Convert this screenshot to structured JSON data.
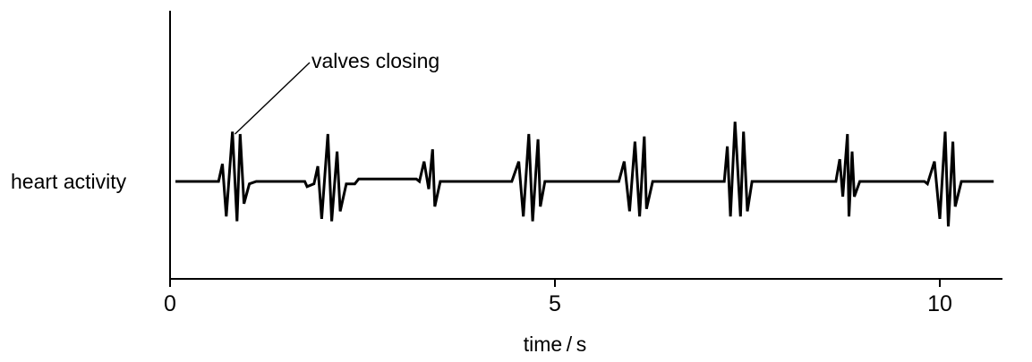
{
  "chart_data": {
    "type": "line",
    "title": "",
    "xlabel": "time / s",
    "ylabel": "heart activity",
    "xlim": [
      0,
      11.0
    ],
    "ylim": [
      -1.05,
      1.55
    ],
    "x_ticks": [
      {
        "value": 0,
        "label": "0"
      },
      {
        "value": 5,
        "label": "5"
      },
      {
        "value": 10,
        "label": "10"
      }
    ],
    "grid": false,
    "annotations": [
      {
        "text": "valves closing",
        "x": 0.82,
        "y": 1.0
      }
    ],
    "series": [
      {
        "color": "#000000",
        "points": [
          [
            0.07,
            0.0
          ],
          [
            0.63,
            0.0
          ],
          [
            0.68,
            0.37
          ],
          [
            0.73,
            -0.74
          ],
          [
            0.81,
            1.05
          ],
          [
            0.87,
            -0.84
          ],
          [
            0.91,
            1.0
          ],
          [
            0.96,
            -0.47
          ],
          [
            1.03,
            -0.05
          ],
          [
            1.12,
            0.0
          ],
          [
            1.75,
            0.0
          ],
          [
            1.78,
            -0.11
          ],
          [
            1.87,
            -0.05
          ],
          [
            1.92,
            0.32
          ],
          [
            1.97,
            -0.79
          ],
          [
            2.05,
            1.0
          ],
          [
            2.1,
            -0.84
          ],
          [
            2.17,
            0.63
          ],
          [
            2.21,
            -0.63
          ],
          [
            2.29,
            -0.05
          ],
          [
            2.4,
            -0.05
          ],
          [
            2.45,
            0.05
          ],
          [
            3.2,
            0.05
          ],
          [
            3.24,
            0.0
          ],
          [
            3.3,
            0.42
          ],
          [
            3.36,
            -0.16
          ],
          [
            3.41,
            0.68
          ],
          [
            3.44,
            -0.53
          ],
          [
            3.51,
            0.0
          ],
          [
            4.44,
            0.0
          ],
          [
            4.53,
            0.42
          ],
          [
            4.59,
            -0.74
          ],
          [
            4.66,
            1.0
          ],
          [
            4.71,
            -0.84
          ],
          [
            4.78,
            0.89
          ],
          [
            4.81,
            -0.53
          ],
          [
            4.87,
            0.0
          ],
          [
            5.83,
            0.0
          ],
          [
            5.9,
            0.42
          ],
          [
            5.97,
            -0.63
          ],
          [
            6.04,
            0.84
          ],
          [
            6.1,
            -0.74
          ],
          [
            6.16,
            0.95
          ],
          [
            6.19,
            -0.58
          ],
          [
            6.27,
            0.0
          ],
          [
            7.2,
            0.0
          ],
          [
            7.24,
            0.74
          ],
          [
            7.28,
            -0.74
          ],
          [
            7.34,
            1.26
          ],
          [
            7.41,
            -0.74
          ],
          [
            7.45,
            1.05
          ],
          [
            7.5,
            -0.63
          ],
          [
            7.56,
            0.0
          ],
          [
            8.65,
            0.0
          ],
          [
            8.7,
            0.47
          ],
          [
            8.74,
            -0.32
          ],
          [
            8.8,
            1.0
          ],
          [
            8.82,
            -0.74
          ],
          [
            8.86,
            0.63
          ],
          [
            8.89,
            -0.32
          ],
          [
            8.96,
            0.0
          ],
          [
            9.8,
            0.0
          ],
          [
            9.84,
            -0.05
          ],
          [
            9.93,
            0.42
          ],
          [
            10.0,
            -0.79
          ],
          [
            10.07,
            1.05
          ],
          [
            10.11,
            -0.95
          ],
          [
            10.17,
            0.84
          ],
          [
            10.2,
            -0.53
          ],
          [
            10.28,
            0.0
          ],
          [
            10.7,
            0.0
          ]
        ]
      }
    ]
  }
}
